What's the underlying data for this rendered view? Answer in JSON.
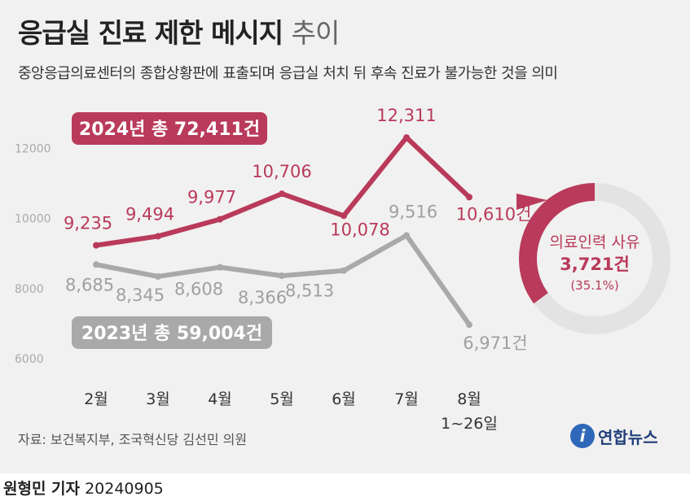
{
  "header": {
    "title_bold": "응급실 진료 제한 메시지",
    "title_light": "추이",
    "subtitle": "중앙응급의료센터의 종합상황판에 표출되며 응급실 처치 뒤 후속 진료가 불가능한 것을 의미"
  },
  "chart_data": {
    "type": "line",
    "categories": [
      "2월",
      "3월",
      "4월",
      "5월",
      "6월",
      "7월",
      "8월"
    ],
    "last_category_sub": "1~26일",
    "ylim": [
      6000,
      12800
    ],
    "yticks": [
      6000,
      8000,
      10000,
      12000
    ],
    "ytick_labels": [
      "6000",
      "8000",
      "10000",
      "12000"
    ],
    "grid": false,
    "series": [
      {
        "name": "2024년 총 72,411건",
        "color": "#b93a5a",
        "values": [
          9235,
          9494,
          9977,
          10706,
          10078,
          12311,
          10610
        ],
        "labels": [
          "9,235",
          "9,494",
          "9,977",
          "10,706",
          "10,078",
          "12,311",
          "10,610건"
        ]
      },
      {
        "name": "2023년 총 59,004건",
        "color": "#a9a9a9",
        "values": [
          8685,
          8345,
          8608,
          8366,
          8513,
          9516,
          6971
        ],
        "labels": [
          "8,685",
          "8,345",
          "8,608",
          "8,366",
          "8,513",
          "9,516",
          "6,971건"
        ]
      }
    ]
  },
  "donut": {
    "title": "의료인력 사유",
    "value": "3,721건",
    "percent_label": "(35.1%)",
    "fraction": 0.351,
    "color": "#b93a5a",
    "track_color": "#e3e3e3"
  },
  "footer": {
    "source": "자료: 보건복지부, 조국혁신당 김선민 의원",
    "logo": "연합뉴스",
    "reporter": "원형민 기자",
    "date": "20240905"
  }
}
